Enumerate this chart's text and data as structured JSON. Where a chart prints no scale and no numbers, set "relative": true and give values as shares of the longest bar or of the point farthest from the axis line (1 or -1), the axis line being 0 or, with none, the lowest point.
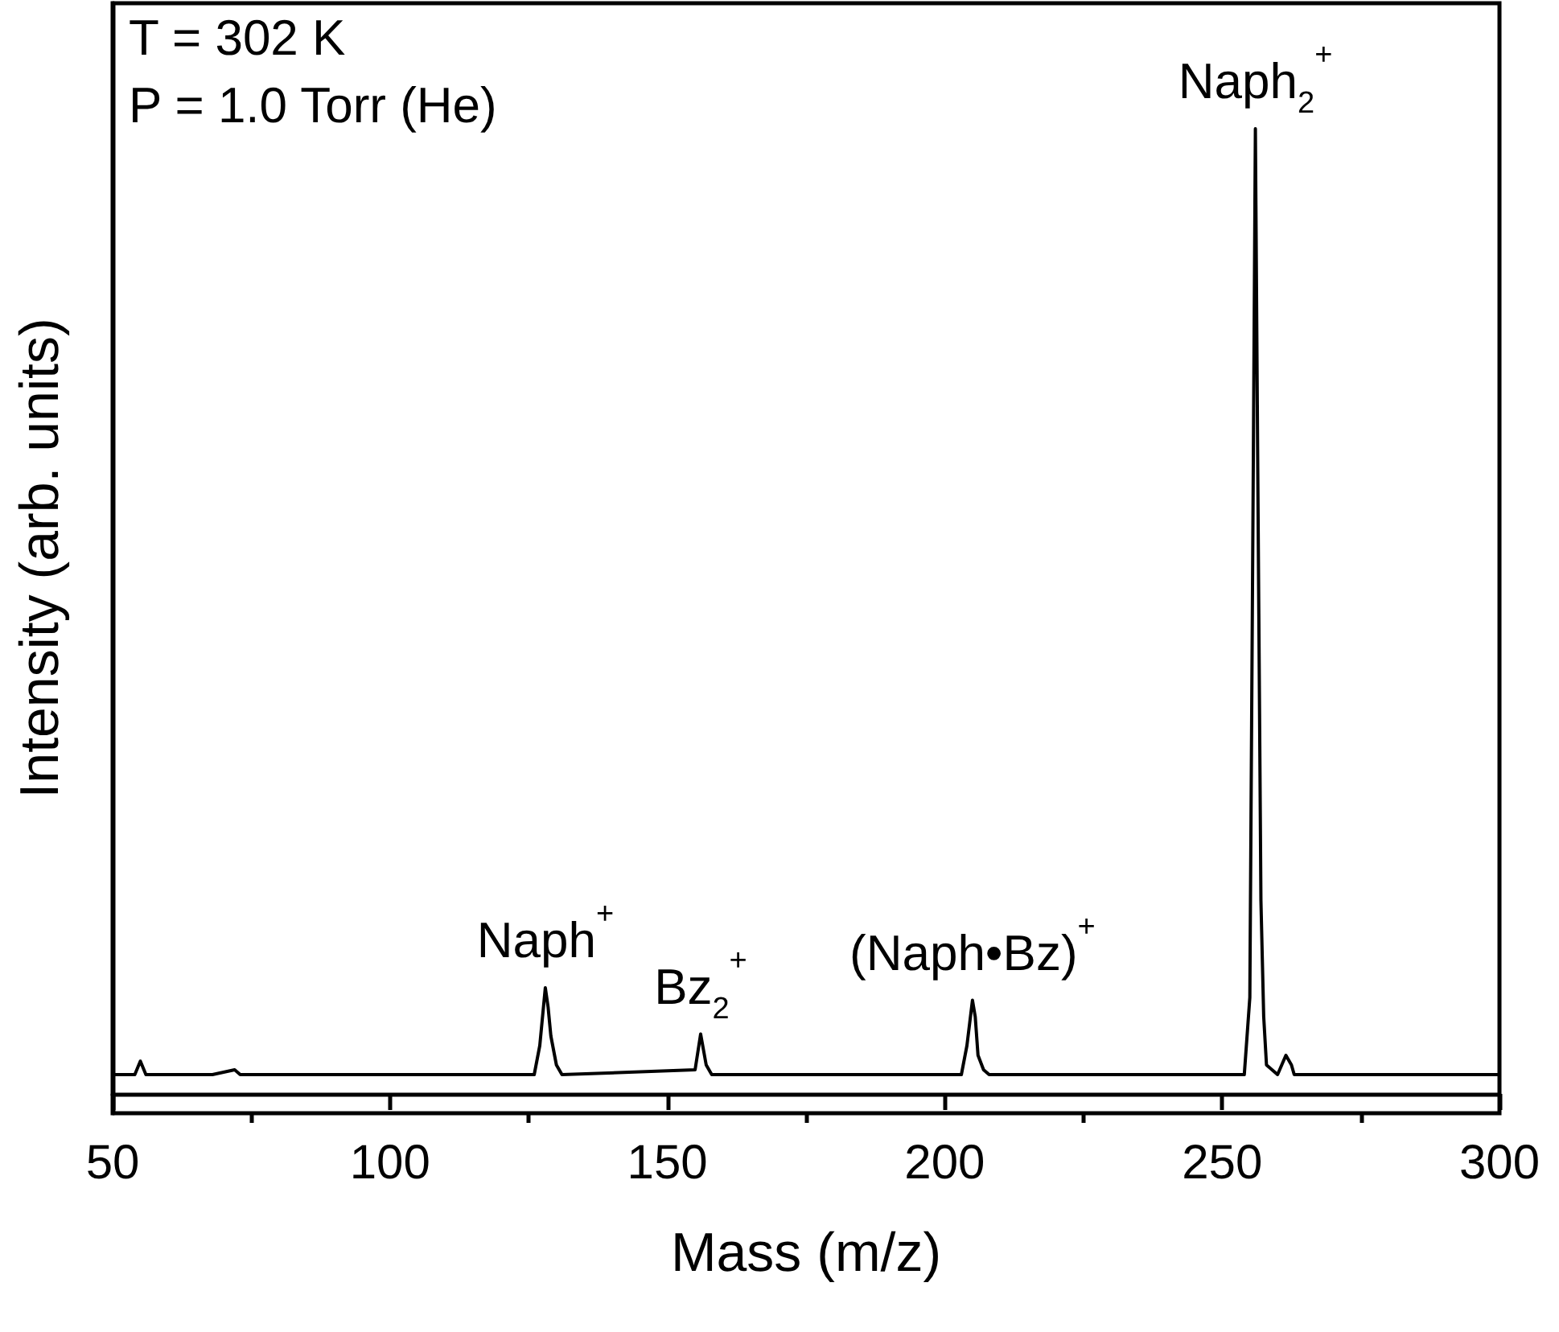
{
  "chart_data": {
    "type": "line",
    "relative": true,
    "xlabel": "Mass (m/z)",
    "ylabel": "Intensity (arb. units)",
    "xlim": [
      50,
      300
    ],
    "xticks": [
      50,
      {
        "value": 75,
        "label": null
      },
      100,
      {
        "value": 125,
        "label": null
      },
      150,
      {
        "value": 175,
        "label": null
      },
      200,
      {
        "value": 225,
        "label": null
      },
      250,
      {
        "value": 275,
        "label": null
      },
      300
    ],
    "series": [
      {
        "color": "#000000",
        "x": [
          50,
          54,
          55,
          56,
          68,
          72,
          73,
          126,
          127,
          128,
          128.5,
          129,
          130,
          131,
          155,
          156,
          157,
          158,
          203,
          204,
          205,
          205.5,
          206,
          207,
          208,
          254,
          255,
          255.6,
          256,
          256.4,
          257,
          257.5,
          258,
          260,
          261.5,
          262.5,
          263,
          300
        ],
        "values": [
          0.02,
          0.02,
          0.034,
          0.02,
          0.02,
          0.025,
          0.02,
          0.02,
          0.05,
          0.11,
          0.09,
          0.06,
          0.03,
          0.02,
          0.025,
          0.062,
          0.03,
          0.02,
          0.02,
          0.05,
          0.097,
          0.08,
          0.04,
          0.025,
          0.02,
          0.02,
          0.1,
          0.63,
          1.0,
          0.67,
          0.2,
          0.08,
          0.03,
          0.02,
          0.04,
          0.03,
          0.02,
          0.02
        ]
      }
    ],
    "annotations": [
      "T = 302 K",
      "P = 1.0 Torr (He)",
      {
        "text": "Naph$^{+}$",
        "x": 128,
        "y": 0.11
      },
      {
        "text": "Bz$_{2}$$^{+}$",
        "x": 156,
        "y": 0.062
      },
      {
        "text": "(Naph•Bz)$^{+}$",
        "x": 205,
        "y": 0.097
      },
      {
        "text": "Naph$_{2}$$^{+}$",
        "x": 256,
        "y": 1.0
      }
    ],
    "grid": false,
    "marker": "none",
    "line_style": "solid"
  }
}
